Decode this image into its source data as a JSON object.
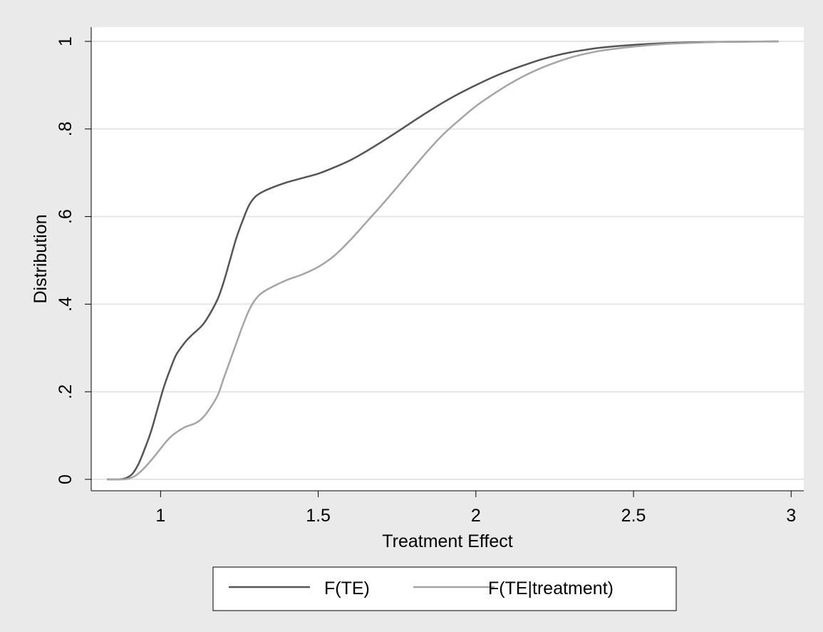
{
  "chart_data": {
    "type": "line",
    "title": "",
    "xlabel": "Treatment Effect",
    "ylabel": "Distribution",
    "xlim": [
      0.78,
      3.04
    ],
    "ylim": [
      0,
      1
    ],
    "x_ticks": [
      1,
      1.5,
      2,
      2.5,
      3
    ],
    "x_tick_labels": [
      "1",
      "1.5",
      "2",
      "2.5",
      "3"
    ],
    "y_ticks": [
      0,
      0.2,
      0.4,
      0.6,
      0.8,
      1
    ],
    "y_tick_labels": [
      "0",
      ".2",
      ".4",
      ".6",
      ".8",
      "1"
    ],
    "grid": "horizontal",
    "legend": "bottom",
    "series": [
      {
        "name": "F(TE)",
        "color": "#555555",
        "x": [
          0.83,
          0.87,
          0.89,
          0.91,
          0.93,
          0.95,
          0.97,
          0.99,
          1.01,
          1.03,
          1.05,
          1.08,
          1.1,
          1.13,
          1.15,
          1.18,
          1.2,
          1.22,
          1.24,
          1.26,
          1.28,
          1.3,
          1.32,
          1.35,
          1.4,
          1.45,
          1.5,
          1.55,
          1.6,
          1.65,
          1.7,
          1.75,
          1.8,
          1.85,
          1.9,
          1.95,
          2.0,
          2.05,
          2.1,
          2.15,
          2.2,
          2.25,
          2.3,
          2.35,
          2.4,
          2.5,
          2.6,
          2.7,
          2.8,
          2.96
        ],
        "y": [
          0,
          0,
          0.003,
          0.012,
          0.035,
          0.07,
          0.11,
          0.16,
          0.21,
          0.25,
          0.285,
          0.315,
          0.33,
          0.35,
          0.37,
          0.41,
          0.45,
          0.5,
          0.55,
          0.59,
          0.625,
          0.645,
          0.655,
          0.665,
          0.678,
          0.688,
          0.698,
          0.712,
          0.728,
          0.748,
          0.77,
          0.793,
          0.817,
          0.84,
          0.862,
          0.882,
          0.9,
          0.917,
          0.932,
          0.945,
          0.957,
          0.967,
          0.975,
          0.981,
          0.986,
          0.992,
          0.996,
          0.998,
          0.999,
          1.0
        ]
      },
      {
        "name": "F(TE|treatment)",
        "color": "#a5a5a5",
        "x": [
          0.83,
          0.88,
          0.9,
          0.92,
          0.94,
          0.96,
          0.98,
          1.0,
          1.02,
          1.04,
          1.06,
          1.08,
          1.11,
          1.13,
          1.15,
          1.18,
          1.2,
          1.22,
          1.24,
          1.26,
          1.28,
          1.3,
          1.32,
          1.35,
          1.4,
          1.45,
          1.5,
          1.55,
          1.6,
          1.65,
          1.7,
          1.75,
          1.8,
          1.85,
          1.9,
          1.95,
          2.0,
          2.05,
          2.1,
          2.15,
          2.2,
          2.25,
          2.3,
          2.35,
          2.4,
          2.5,
          2.6,
          2.7,
          2.8,
          2.96
        ],
        "y": [
          0,
          0,
          0.002,
          0.008,
          0.02,
          0.035,
          0.052,
          0.07,
          0.088,
          0.102,
          0.112,
          0.12,
          0.128,
          0.138,
          0.155,
          0.19,
          0.23,
          0.27,
          0.31,
          0.35,
          0.385,
          0.41,
          0.425,
          0.438,
          0.455,
          0.468,
          0.485,
          0.51,
          0.545,
          0.585,
          0.625,
          0.667,
          0.71,
          0.752,
          0.79,
          0.822,
          0.852,
          0.877,
          0.9,
          0.92,
          0.937,
          0.951,
          0.963,
          0.972,
          0.979,
          0.988,
          0.994,
          0.997,
          0.999,
          1.0
        ]
      }
    ]
  }
}
